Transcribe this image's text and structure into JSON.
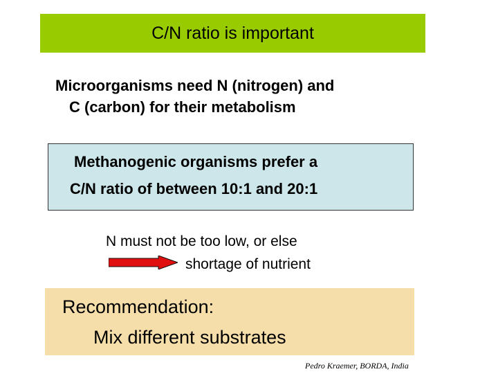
{
  "title": "C/N ratio is important",
  "intro": {
    "line1": "Microorganisms need N (nitrogen) and",
    "line2": "C  (carbon) for their metabolism"
  },
  "methanogenic": {
    "line1": "Methanogenic organisms prefer a",
    "line2": "C/N ratio of between 10:1 and 20:1"
  },
  "warning": {
    "line1": "N must not be too low, or else",
    "line2": "shortage of nutrient"
  },
  "recommendation": {
    "line1": "Recommendation:",
    "line2": "Mix different substrates"
  },
  "credit": "Pedro Kraemer, BORDA, India",
  "colors": {
    "title_bg": "#99cc00",
    "box_bg": "#cce6ea",
    "recommendation_bg": "#f6deaa",
    "arrow": "#e01010"
  }
}
